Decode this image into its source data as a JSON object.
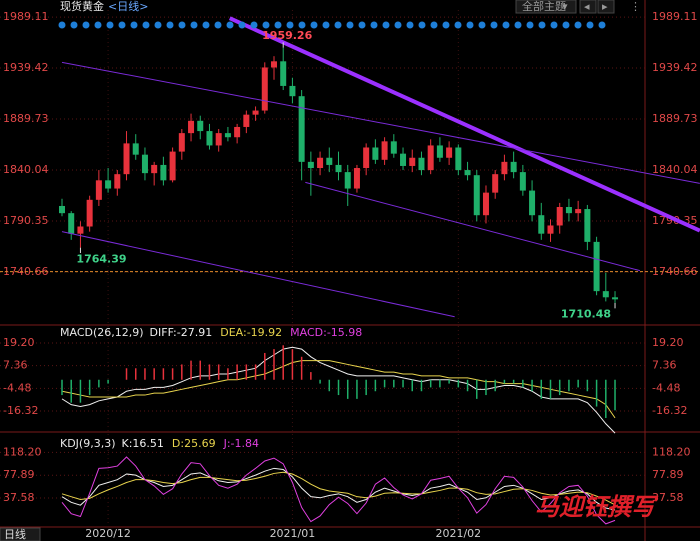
{
  "toolbar": {
    "theme": "全部主题",
    "period_button": "日线"
  },
  "watermark": "马迎钰撰写",
  "chart_data": [
    {
      "type": "candlestick",
      "title": "现货黄金",
      "period": "<日线>",
      "up_color": "#e8323c",
      "down_color": "#1fb06a",
      "ylim": [
        1689,
        1996
      ],
      "yticks": [
        1989.11,
        1939.42,
        1889.73,
        1840.04,
        1790.35,
        1740.66
      ],
      "grid": true,
      "xticks": [
        {
          "value": 5,
          "label": "2020/12"
        },
        {
          "value": 25,
          "label": "2021/01"
        },
        {
          "value": 43,
          "label": "2021/02"
        }
      ],
      "ohlc": [
        [
          1805,
          1812,
          1795,
          1798
        ],
        [
          1798,
          1800,
          1772,
          1778
        ],
        [
          1778,
          1790,
          1764.39,
          1785
        ],
        [
          1785,
          1815,
          1780,
          1811
        ],
        [
          1811,
          1840,
          1805,
          1830
        ],
        [
          1830,
          1842,
          1818,
          1822
        ],
        [
          1822,
          1840,
          1815,
          1836
        ],
        [
          1836,
          1878,
          1830,
          1866
        ],
        [
          1866,
          1875,
          1850,
          1855
        ],
        [
          1855,
          1862,
          1830,
          1837
        ],
        [
          1837,
          1848,
          1825,
          1845
        ],
        [
          1845,
          1853,
          1825,
          1830
        ],
        [
          1830,
          1862,
          1828,
          1858
        ],
        [
          1858,
          1880,
          1850,
          1876
        ],
        [
          1876,
          1895,
          1868,
          1888
        ],
        [
          1888,
          1893,
          1870,
          1878
        ],
        [
          1878,
          1885,
          1860,
          1864
        ],
        [
          1864,
          1880,
          1858,
          1876
        ],
        [
          1876,
          1882,
          1868,
          1872
        ],
        [
          1872,
          1885,
          1866,
          1882
        ],
        [
          1882,
          1898,
          1876,
          1894
        ],
        [
          1894,
          1902,
          1888,
          1898
        ],
        [
          1898,
          1945,
          1895,
          1940
        ],
        [
          1940,
          1951,
          1928,
          1946
        ],
        [
          1946,
          1959.26,
          1918,
          1922
        ],
        [
          1922,
          1930,
          1905,
          1912
        ],
        [
          1912,
          1918,
          1830,
          1848
        ],
        [
          1848,
          1858,
          1815,
          1842
        ],
        [
          1842,
          1858,
          1835,
          1852
        ],
        [
          1852,
          1862,
          1838,
          1845
        ],
        [
          1845,
          1858,
          1830,
          1838
        ],
        [
          1838,
          1845,
          1805,
          1822
        ],
        [
          1822,
          1845,
          1818,
          1842
        ],
        [
          1842,
          1866,
          1835,
          1862
        ],
        [
          1862,
          1870,
          1846,
          1850
        ],
        [
          1850,
          1872,
          1845,
          1868
        ],
        [
          1868,
          1875,
          1852,
          1856
        ],
        [
          1856,
          1862,
          1840,
          1844
        ],
        [
          1844,
          1860,
          1838,
          1852
        ],
        [
          1852,
          1858,
          1835,
          1840
        ],
        [
          1840,
          1870,
          1836,
          1864
        ],
        [
          1864,
          1872,
          1848,
          1852
        ],
        [
          1852,
          1868,
          1845,
          1862
        ],
        [
          1862,
          1865,
          1835,
          1840
        ],
        [
          1840,
          1848,
          1830,
          1835
        ],
        [
          1835,
          1840,
          1790,
          1796
        ],
        [
          1796,
          1825,
          1788,
          1818
        ],
        [
          1818,
          1840,
          1812,
          1836
        ],
        [
          1836,
          1855,
          1830,
          1848
        ],
        [
          1848,
          1858,
          1832,
          1838
        ],
        [
          1838,
          1845,
          1815,
          1820
        ],
        [
          1820,
          1830,
          1790,
          1796
        ],
        [
          1796,
          1808,
          1772,
          1778
        ],
        [
          1778,
          1792,
          1770,
          1786
        ],
        [
          1786,
          1808,
          1778,
          1804
        ],
        [
          1804,
          1812,
          1790,
          1798
        ],
        [
          1798,
          1810,
          1790,
          1802
        ],
        [
          1802,
          1806,
          1762,
          1770
        ],
        [
          1770,
          1775,
          1718,
          1722
        ],
        [
          1722,
          1740,
          1712,
          1716
        ],
        [
          1716,
          1722,
          1710.48,
          1714
        ]
      ],
      "annotations": [
        {
          "x": 24,
          "value": 1959.26,
          "color": "#ff4a55",
          "side": "above"
        },
        {
          "x": 2,
          "value": 1764.39,
          "color": "#3fd38a",
          "side": "below"
        },
        {
          "x": 60,
          "value": 1710.48,
          "color": "#3fd38a",
          "side": "below"
        }
      ],
      "trend_lines": [
        {
          "color": "#9b30ff",
          "bold": true,
          "x": [
            18.2,
            69.2
          ],
          "values": [
            1988,
            1781
          ]
        },
        {
          "color": "#7a2bd8",
          "bold": false,
          "x": [
            0,
            69.2
          ],
          "values": [
            1945,
            1827
          ]
        },
        {
          "color": "#7a2bd8",
          "bold": false,
          "x": [
            26.4,
            62.7
          ],
          "values": [
            1828,
            1742
          ]
        },
        {
          "color": "#7a2bd8",
          "bold": false,
          "x": [
            0,
            42.6
          ],
          "values": [
            1780,
            1697
          ]
        }
      ],
      "reference_line": {
        "value": 1741,
        "color": "#e08a2a"
      }
    },
    {
      "type": "macd",
      "title": "MACD(26,12,9)",
      "ylim": [
        -29.4,
        26
      ],
      "yticks": [
        {
          "value": 19.2,
          "label": "19.20"
        },
        7.36,
        -4.48,
        -16.32
      ],
      "grid": true,
      "up_color": "#e8323c",
      "down_color": "#1fb06a",
      "series": [
        {
          "name": "DIFF:-27.91",
          "color": "#f0f0f0",
          "style": "line",
          "values": [
            -10,
            -13,
            -14,
            -13,
            -11,
            -10,
            -9,
            -6,
            -5,
            -5,
            -4,
            -4,
            -3,
            -1,
            1,
            2,
            2,
            3,
            3,
            4,
            5,
            6,
            10,
            13,
            16,
            17,
            16,
            12,
            9,
            7,
            5,
            3,
            2,
            2,
            2,
            2,
            2,
            1,
            0,
            -1,
            0,
            0,
            0,
            -1,
            -2,
            -5,
            -5,
            -4,
            -3,
            -3,
            -4,
            -6,
            -9,
            -10,
            -10,
            -10,
            -10,
            -12,
            -17,
            -23,
            -27.91
          ]
        },
        {
          "name": "DEA:-19.92",
          "color": "#e8d44d",
          "style": "line",
          "values": [
            -6,
            -7,
            -8,
            -9,
            -9,
            -9,
            -9,
            -9,
            -8,
            -8,
            -7,
            -7,
            -6,
            -5,
            -4,
            -3,
            -2,
            -1,
            0,
            0,
            1,
            2,
            3,
            5,
            7,
            9,
            10,
            10,
            10,
            10,
            9,
            8,
            7,
            6,
            5,
            4,
            4,
            3,
            3,
            2,
            2,
            2,
            1,
            1,
            1,
            0,
            -1,
            -1,
            -2,
            -2,
            -2,
            -3,
            -4,
            -5,
            -6,
            -7,
            -8,
            -9,
            -10,
            -13,
            -19.92
          ]
        },
        {
          "name": "MACD:-15.98",
          "color": "#e040e0",
          "style": "bar",
          "values": [
            -8,
            -12,
            -12,
            -8,
            -4,
            -2,
            0,
            6,
            6,
            6,
            6,
            6,
            6,
            8,
            10,
            10,
            8,
            8,
            6,
            8,
            8,
            8,
            14,
            16,
            18,
            16,
            12,
            4,
            -2,
            -6,
            -8,
            -10,
            -10,
            -8,
            -6,
            -4,
            -4,
            -4,
            -6,
            -6,
            -4,
            -4,
            -2,
            -4,
            -6,
            -10,
            -8,
            -6,
            -2,
            -2,
            -4,
            -6,
            -10,
            -10,
            -8,
            -6,
            -4,
            -6,
            -14,
            -20,
            -15.98
          ]
        }
      ]
    },
    {
      "type": "line",
      "title": "KDJ(9,3,3)",
      "ylim": [
        -10,
        140
      ],
      "yticks": [
        {
          "value": 118.2,
          "label": "118.20"
        },
        77.89,
        37.58
      ],
      "grid": true,
      "series": [
        {
          "name": "K:16.51",
          "color": "#f0f0f0",
          "values": [
            40,
            30,
            25,
            40,
            60,
            65,
            70,
            80,
            78,
            70,
            65,
            58,
            60,
            70,
            80,
            82,
            75,
            68,
            65,
            66,
            72,
            78,
            85,
            90,
            88,
            75,
            55,
            40,
            38,
            42,
            45,
            40,
            30,
            35,
            48,
            55,
            50,
            45,
            42,
            45,
            55,
            58,
            62,
            55,
            48,
            35,
            38,
            48,
            58,
            60,
            55,
            45,
            35,
            38,
            45,
            50,
            52,
            45,
            30,
            20,
            16.51
          ]
        },
        {
          "name": "D:25.69",
          "color": "#e8d44d",
          "values": [
            45,
            40,
            35,
            37,
            45,
            52,
            58,
            65,
            70,
            70,
            68,
            65,
            63,
            65,
            70,
            74,
            74,
            72,
            70,
            68,
            69,
            72,
            76,
            81,
            83,
            80,
            72,
            62,
            54,
            50,
            48,
            46,
            40,
            38,
            41,
            46,
            47,
            46,
            45,
            45,
            48,
            51,
            55,
            55,
            53,
            47,
            44,
            45,
            49,
            53,
            54,
            51,
            46,
            43,
            44,
            46,
            48,
            47,
            41,
            34,
            25.69
          ]
        },
        {
          "name": "J:-1.84",
          "color": "#e040e0",
          "values": [
            30,
            10,
            5,
            46,
            90,
            91,
            94,
            110,
            94,
            70,
            59,
            44,
            54,
            80,
            100,
            98,
            77,
            60,
            55,
            62,
            78,
            90,
            103,
            108,
            98,
            65,
            21,
            -4,
            6,
            26,
            39,
            28,
            10,
            29,
            62,
            73,
            56,
            43,
            36,
            45,
            69,
            72,
            76,
            55,
            38,
            11,
            26,
            54,
            76,
            74,
            57,
            33,
            13,
            28,
            47,
            58,
            60,
            41,
            8,
            -8,
            -1.84
          ]
        }
      ]
    }
  ]
}
